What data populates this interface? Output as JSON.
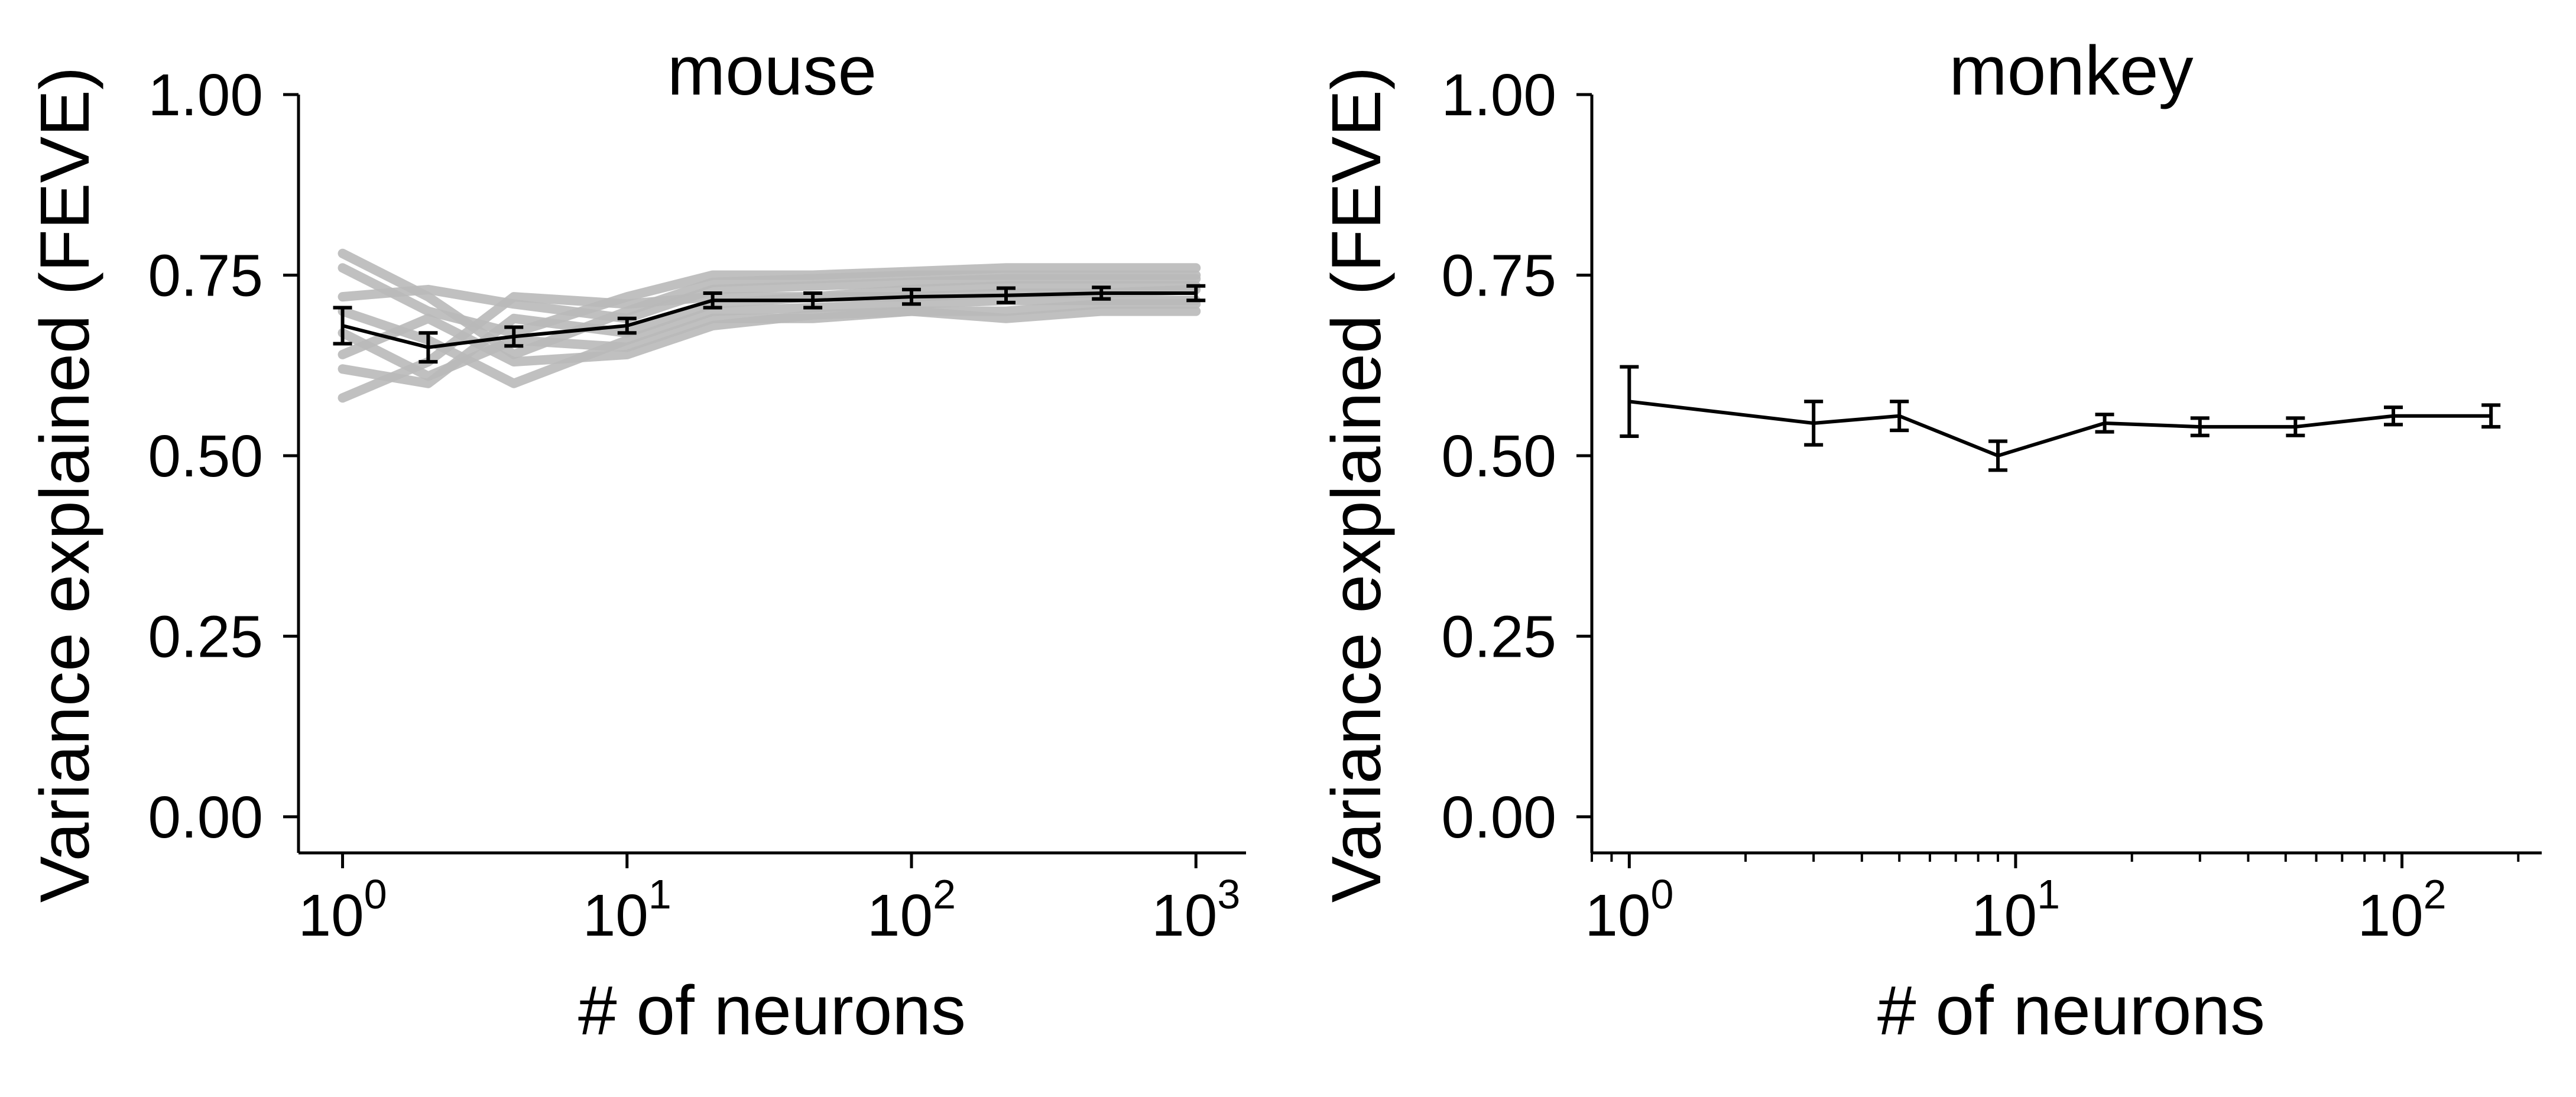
{
  "figure": {
    "background": "#ffffff",
    "mean_color": "#000000",
    "individual_color": "#b9b9b9"
  },
  "chart_data": [
    {
      "type": "line",
      "title": "mouse",
      "xlabel": "# of neurons",
      "ylabel": "Variance explained (FEVE)",
      "xscale": "log",
      "xlim": [
        0.7,
        1500
      ],
      "ylim": [
        -0.05,
        1.0
      ],
      "yticks": [
        0.0,
        0.25,
        0.5,
        0.75,
        1.0
      ],
      "ytick_labels": [
        "0.00",
        "0.25",
        "0.50",
        "0.75",
        "1.00"
      ],
      "xticks": [
        1,
        10,
        100,
        1000
      ],
      "xtick_labels": [
        {
          "base": "10",
          "exp": "0"
        },
        {
          "base": "10",
          "exp": "1"
        },
        {
          "base": "10",
          "exp": "2"
        },
        {
          "base": "10",
          "exp": "3"
        }
      ],
      "grid": false,
      "legend": "none",
      "x": [
        1,
        2,
        4,
        10,
        20,
        45,
        100,
        215,
        465,
        1000
      ],
      "series": [
        {
          "role": "mean",
          "values": [
            0.68,
            0.65,
            0.665,
            0.68,
            0.715,
            0.715,
            0.72,
            0.722,
            0.725,
            0.725
          ],
          "errors": [
            0.025,
            0.02,
            0.013,
            0.01,
            0.01,
            0.01,
            0.01,
            0.01,
            0.008,
            0.01
          ]
        },
        {
          "role": "individual",
          "values": [
            0.78,
            0.72,
            0.64,
            0.7,
            0.74,
            0.745,
            0.75,
            0.75,
            0.75,
            0.75
          ]
        },
        {
          "role": "individual",
          "values": [
            0.72,
            0.73,
            0.71,
            0.69,
            0.73,
            0.735,
            0.74,
            0.745,
            0.745,
            0.745
          ]
        },
        {
          "role": "individual",
          "values": [
            0.7,
            0.66,
            0.6,
            0.66,
            0.7,
            0.705,
            0.71,
            0.715,
            0.715,
            0.715
          ]
        },
        {
          "role": "individual",
          "values": [
            0.67,
            0.61,
            0.66,
            0.65,
            0.69,
            0.69,
            0.7,
            0.7,
            0.71,
            0.71
          ]
        },
        {
          "role": "individual",
          "values": [
            0.62,
            0.6,
            0.69,
            0.67,
            0.71,
            0.72,
            0.72,
            0.725,
            0.725,
            0.73
          ]
        },
        {
          "role": "individual",
          "values": [
            0.58,
            0.63,
            0.72,
            0.71,
            0.72,
            0.72,
            0.73,
            0.735,
            0.735,
            0.735
          ]
        },
        {
          "role": "individual",
          "values": [
            0.64,
            0.69,
            0.63,
            0.64,
            0.68,
            0.695,
            0.7,
            0.69,
            0.7,
            0.7
          ]
        },
        {
          "role": "individual",
          "values": [
            0.76,
            0.7,
            0.67,
            0.72,
            0.75,
            0.75,
            0.755,
            0.76,
            0.76,
            0.76
          ]
        }
      ]
    },
    {
      "type": "line",
      "title": "monkey",
      "xlabel": "# of neurons",
      "ylabel": "Variance explained (FEVE)",
      "xscale": "log",
      "xlim": [
        0.8,
        230
      ],
      "ylim": [
        -0.05,
        1.0
      ],
      "yticks": [
        0.0,
        0.25,
        0.5,
        0.75,
        1.0
      ],
      "ytick_labels": [
        "0.00",
        "0.25",
        "0.50",
        "0.75",
        "1.00"
      ],
      "xticks": [
        1,
        10,
        100
      ],
      "xtick_labels": [
        {
          "base": "10",
          "exp": "0"
        },
        {
          "base": "10",
          "exp": "1"
        },
        {
          "base": "10",
          "exp": "2"
        }
      ],
      "minor_xticks": true,
      "grid": false,
      "legend": "none",
      "x": [
        1,
        3,
        5,
        9,
        17,
        30,
        53,
        95,
        170
      ],
      "series": [
        {
          "role": "mean",
          "values": [
            0.575,
            0.545,
            0.555,
            0.5,
            0.545,
            0.54,
            0.54,
            0.555,
            0.555
          ],
          "errors": [
            0.048,
            0.03,
            0.02,
            0.02,
            0.012,
            0.012,
            0.012,
            0.012,
            0.015
          ]
        }
      ]
    }
  ]
}
